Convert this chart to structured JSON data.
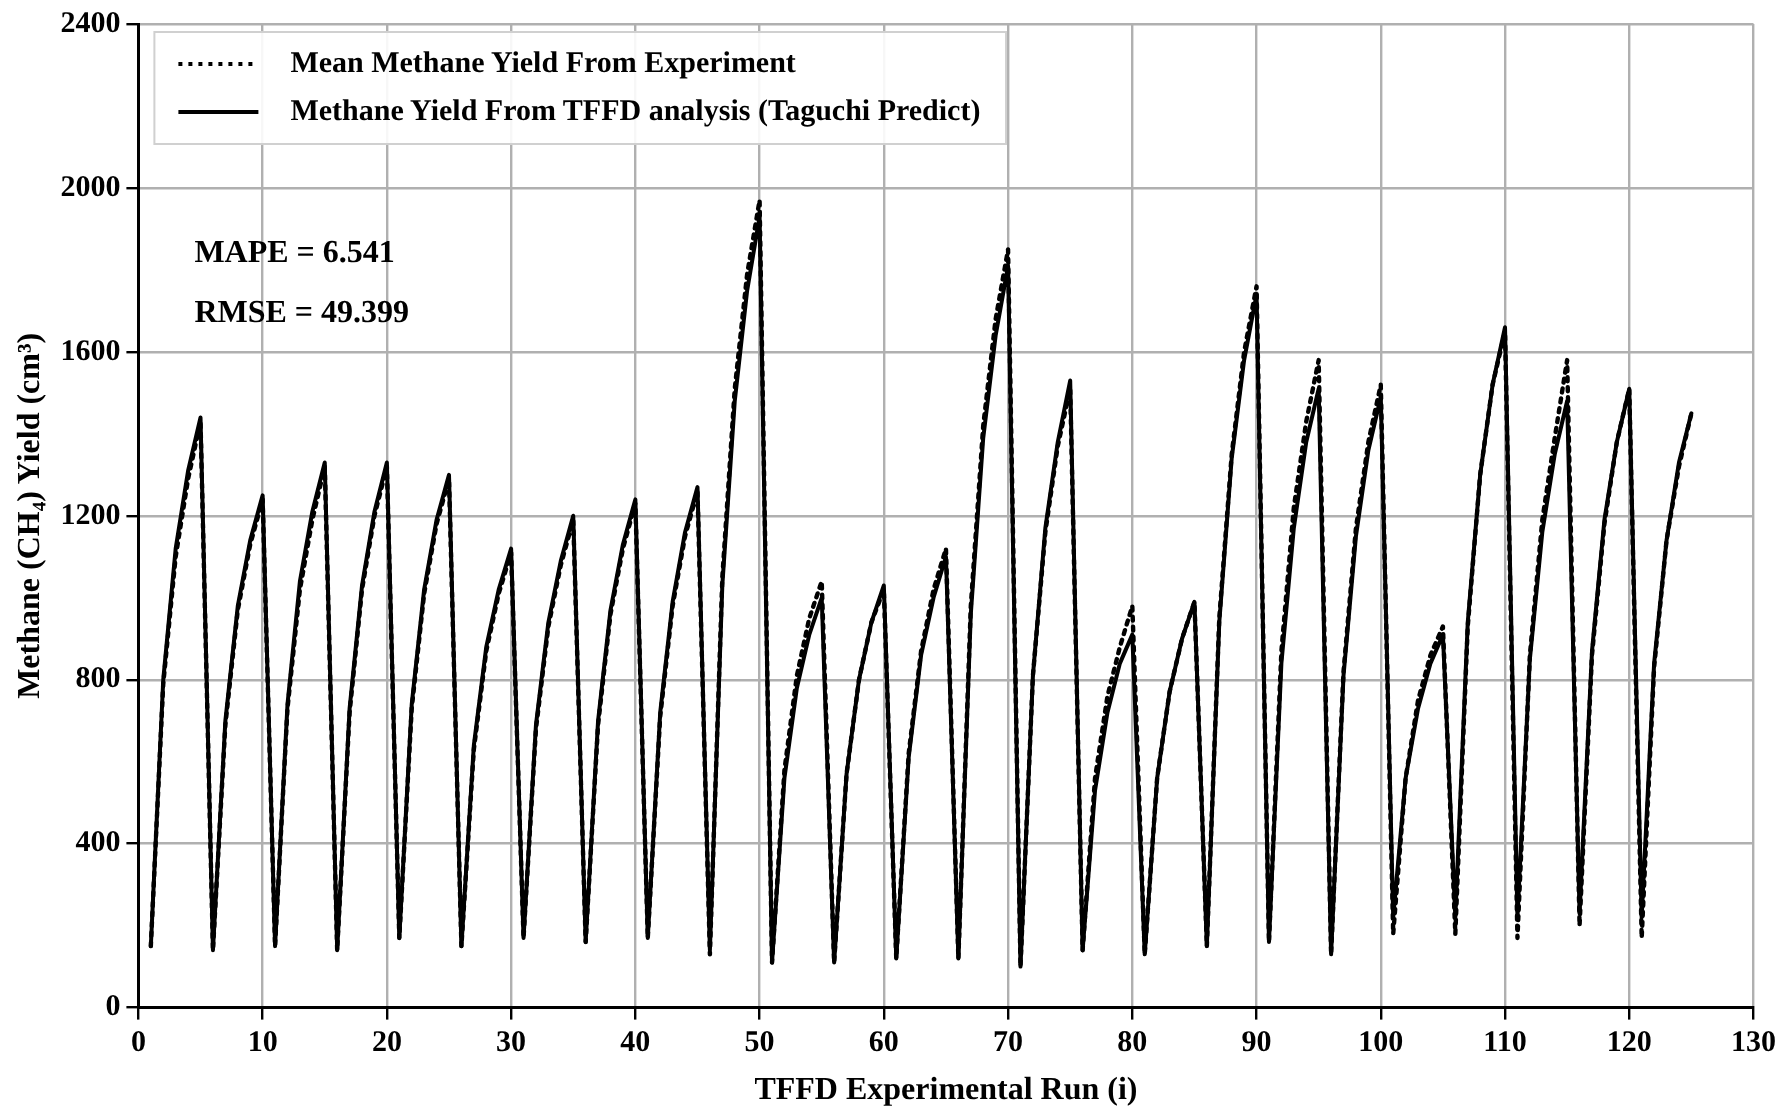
{
  "chart_data": {
    "type": "line",
    "xlabel": "TFFD Experimental Run (i)",
    "ylabel": "Methane (CH₄) Yield (cm³)",
    "x": [
      1,
      2,
      3,
      4,
      5,
      6,
      7,
      8,
      9,
      10,
      11,
      12,
      13,
      14,
      15,
      16,
      17,
      18,
      19,
      20,
      21,
      22,
      23,
      24,
      25,
      26,
      27,
      28,
      29,
      30,
      31,
      32,
      33,
      34,
      35,
      36,
      37,
      38,
      39,
      40,
      41,
      42,
      43,
      44,
      45,
      46,
      47,
      48,
      49,
      50,
      51,
      52,
      53,
      54,
      55,
      56,
      57,
      58,
      59,
      60,
      61,
      62,
      63,
      64,
      65,
      66,
      67,
      68,
      69,
      70,
      71,
      72,
      73,
      74,
      75,
      76,
      77,
      78,
      79,
      80,
      81,
      82,
      83,
      84,
      85,
      86,
      87,
      88,
      89,
      90,
      91,
      92,
      93,
      94,
      95,
      96,
      97,
      98,
      99,
      100,
      101,
      102,
      103,
      104,
      105,
      106,
      107,
      108,
      109,
      110,
      111,
      112,
      113,
      114,
      115,
      116,
      117,
      118,
      119,
      120,
      121,
      122,
      123,
      124,
      125
    ],
    "series": [
      {
        "name": "Mean Methane Yield From Experiment",
        "color": "#000000",
        "line_style": "dotted",
        "values": [
          150,
          790,
          1100,
          1290,
          1430,
          140,
          690,
          970,
          1130,
          1240,
          150,
          730,
          1020,
          1190,
          1320,
          140,
          720,
          1020,
          1200,
          1320,
          170,
          730,
          1010,
          1180,
          1290,
          150,
          630,
          870,
          1010,
          1110,
          170,
          680,
          930,
          1080,
          1190,
          160,
          690,
          960,
          1120,
          1230,
          170,
          710,
          980,
          1150,
          1260,
          130,
          1050,
          1510,
          1790,
          1970,
          110,
          580,
          810,
          950,
          1040,
          110,
          570,
          800,
          940,
          1020,
          120,
          620,
          870,
          1020,
          1120,
          120,
          980,
          1420,
          1680,
          1850,
          100,
          810,
          1160,
          1370,
          1510,
          140,
          560,
          760,
          880,
          980,
          130,
          560,
          770,
          900,
          990,
          150,
          950,
          1350,
          1600,
          1760,
          160,
          870,
          1220,
          1430,
          1580,
          130,
          820,
          1170,
          1380,
          1520,
          180,
          560,
          750,
          860,
          930,
          180,
          930,
          1300,
          1520,
          1650,
          170,
          860,
          1190,
          1390,
          1580,
          200,
          860,
          1180,
          1380,
          1510,
          170,
          830,
          1140,
          1320,
          1450
        ]
      },
      {
        "name": "Methane Yield From TFFD analysis (Taguchi Predict)",
        "color": "#000000",
        "line_style": "solid",
        "values": [
          150,
          800,
          1120,
          1310,
          1440,
          140,
          700,
          980,
          1140,
          1250,
          150,
          740,
          1040,
          1210,
          1330,
          140,
          730,
          1030,
          1210,
          1330,
          170,
          740,
          1020,
          1190,
          1300,
          150,
          640,
          880,
          1020,
          1120,
          170,
          690,
          940,
          1090,
          1200,
          160,
          700,
          970,
          1130,
          1240,
          170,
          720,
          990,
          1160,
          1270,
          140,
          1030,
          1480,
          1750,
          1930,
          110,
          560,
          780,
          910,
          1000,
          110,
          570,
          800,
          940,
          1030,
          120,
          610,
          860,
          1000,
          1100,
          120,
          960,
          1390,
          1640,
          1810,
          100,
          810,
          1170,
          1380,
          1530,
          140,
          530,
          720,
          840,
          910,
          130,
          560,
          770,
          900,
          990,
          150,
          940,
          1340,
          1580,
          1740,
          160,
          840,
          1170,
          1380,
          1510,
          130,
          810,
          1150,
          1360,
          1490,
          220,
          560,
          730,
          840,
          910,
          220,
          940,
          1300,
          1520,
          1660,
          220,
          850,
          1160,
          1350,
          1480,
          230,
          870,
          1190,
          1380,
          1510,
          220,
          840,
          1140,
          1330,
          1450
        ]
      }
    ],
    "xlim": [
      0,
      130
    ],
    "xticks": [
      0,
      10,
      20,
      30,
      40,
      50,
      60,
      70,
      80,
      90,
      100,
      110,
      120,
      130
    ],
    "ylim": [
      0,
      2400
    ],
    "yticks": [
      0,
      400,
      800,
      1200,
      1600,
      2000,
      2400
    ],
    "grid": true,
    "legend": "top left",
    "marker": "none",
    "annotations": [
      "MAPE = 6.541",
      "RMSE = 49.399"
    ]
  }
}
